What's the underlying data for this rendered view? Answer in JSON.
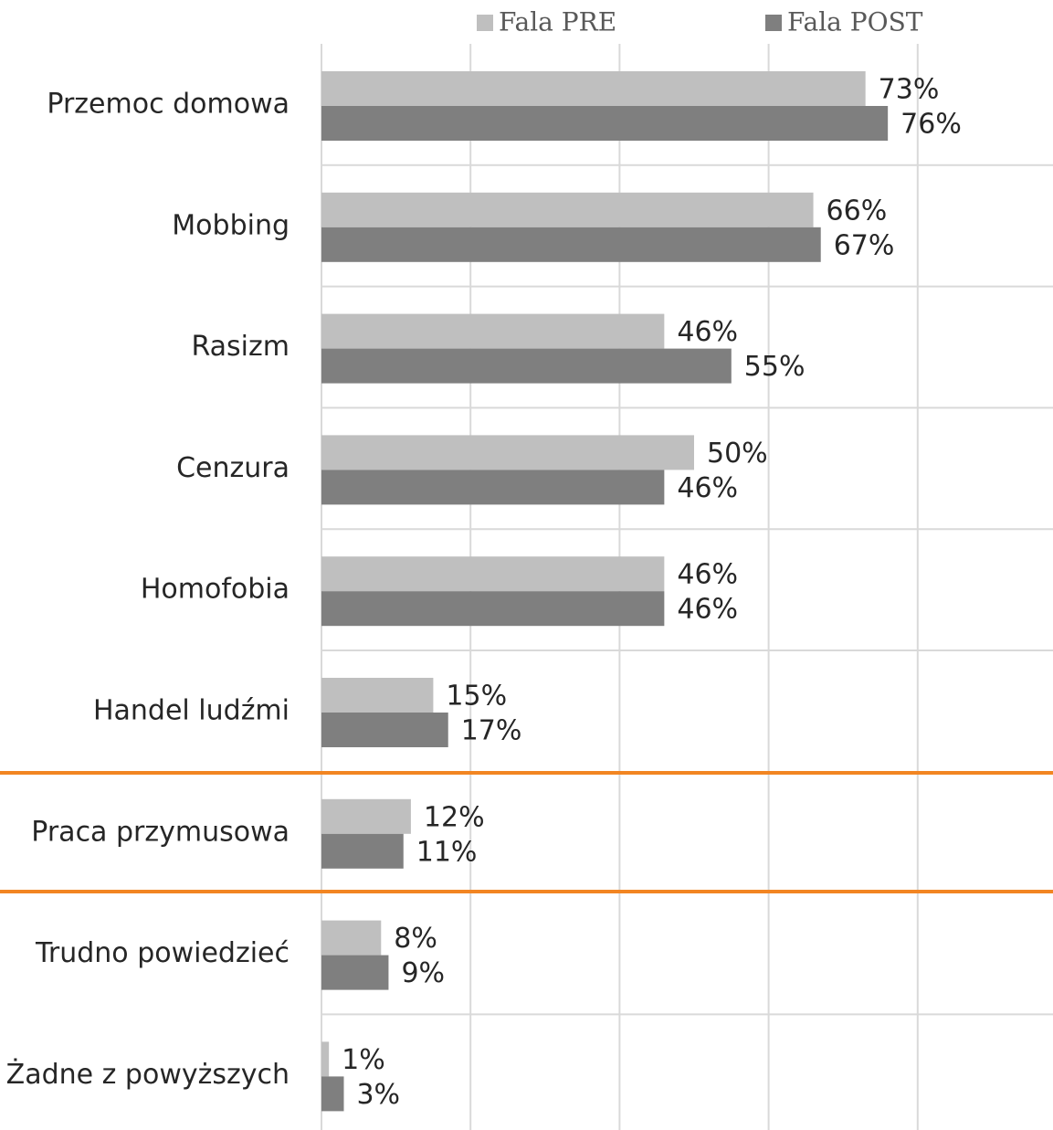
{
  "chart_data": {
    "type": "hbar",
    "categories": [
      "Przemoc domowa",
      "Mobbing",
      "Rasizm",
      "Cenzura",
      "Homofobia",
      "Handel ludźmi",
      "Praca przymusowa",
      "Trudno powiedzieć",
      "Żadne z powyższych"
    ],
    "series": [
      {
        "name": "Fala PRE",
        "color": "#bfbfbf",
        "values": [
          73,
          66,
          46,
          50,
          46,
          15,
          12,
          8,
          1
        ],
        "value_labels": [
          "73%",
          "66%",
          "46%",
          "50%",
          "46%",
          "15%",
          "12%",
          "8%",
          "1%"
        ]
      },
      {
        "name": "Fala POST",
        "color": "#7f7f7f",
        "values": [
          76,
          67,
          55,
          46,
          46,
          17,
          11,
          9,
          3
        ],
        "value_labels": [
          "76%",
          "67%",
          "55%",
          "46%",
          "46%",
          "17%",
          "11%",
          "9%",
          "3%"
        ]
      }
    ],
    "xlim": [
      0,
      100
    ],
    "xticks": [
      0,
      20,
      40,
      60,
      80
    ],
    "grid": true,
    "legend": "top"
  }
}
